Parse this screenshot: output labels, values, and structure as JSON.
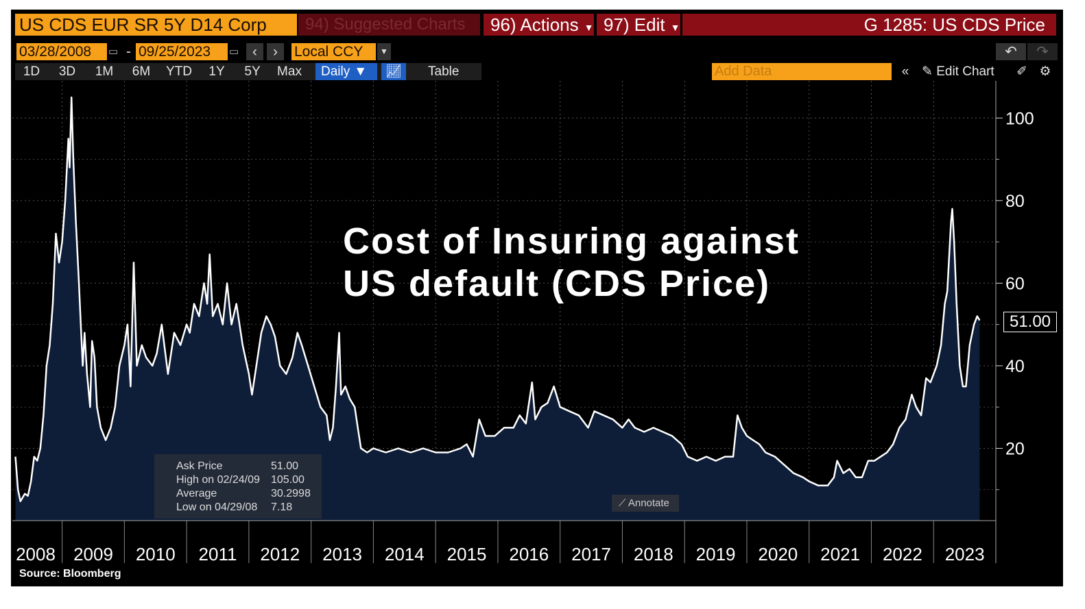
{
  "toolbar": {
    "security": "US CDS EUR SR 5Y D14 Corp",
    "suggested": "94) Suggested Charts",
    "actions": "96) Actions",
    "edit": "97) Edit",
    "function": "G 1285: US CDS Price"
  },
  "date_range": {
    "start": "03/28/2008",
    "separator": "-",
    "end": "09/25/2023",
    "currency": "Local CCY"
  },
  "periods": [
    "1D",
    "3D",
    "1M",
    "6M",
    "YTD",
    "1Y",
    "5Y",
    "Max"
  ],
  "frequency": "Daily",
  "table_button": "Table",
  "add_data": "Add Data",
  "edit_chart": "Edit Chart",
  "annotate": "Annotate",
  "legend": {
    "rows": [
      [
        "Ask Price",
        "51.00"
      ],
      [
        "High on 02/24/09",
        "105.00"
      ],
      [
        "Average",
        "30.2998"
      ],
      [
        "Low on 04/29/08",
        "7.18"
      ]
    ]
  },
  "chart_data": {
    "type": "area",
    "title": [
      "Cost of Insuring against",
      "US default (CDS Price)"
    ],
    "source": "Source: Bloomberg",
    "line_color": "#ffffff",
    "fill_color": "#0e1d38",
    "grid": true,
    "x": [
      2008.25,
      2008.29,
      2008.33,
      2008.4,
      2008.45,
      2008.5,
      2008.55,
      2008.6,
      2008.65,
      2008.7,
      2008.75,
      2008.8,
      2008.85,
      2008.9,
      2008.95,
      2009.0,
      2009.05,
      2009.1,
      2009.12,
      2009.15,
      2009.18,
      2009.22,
      2009.27,
      2009.3,
      2009.33,
      2009.36,
      2009.4,
      2009.45,
      2009.48,
      2009.52,
      2009.56,
      2009.62,
      2009.7,
      2009.78,
      2009.85,
      2009.92,
      2010.0,
      2010.05,
      2010.1,
      2010.15,
      2010.2,
      2010.28,
      2010.35,
      2010.45,
      2010.52,
      2010.6,
      2010.7,
      2010.8,
      2010.9,
      2011.0,
      2011.05,
      2011.12,
      2011.2,
      2011.28,
      2011.33,
      2011.37,
      2011.42,
      2011.5,
      2011.58,
      2011.65,
      2011.72,
      2011.8,
      2011.9,
      2012.0,
      2012.05,
      2012.12,
      2012.2,
      2012.28,
      2012.35,
      2012.42,
      2012.5,
      2012.6,
      2012.7,
      2012.78,
      2012.85,
      2012.95,
      2013.05,
      2013.15,
      2013.25,
      2013.3,
      2013.35,
      2013.4,
      2013.45,
      2013.48,
      2013.55,
      2013.62,
      2013.7,
      2013.75,
      2013.8,
      2013.9,
      2014.0,
      2014.2,
      2014.4,
      2014.6,
      2014.8,
      2015.0,
      2015.2,
      2015.4,
      2015.5,
      2015.6,
      2015.7,
      2015.8,
      2015.95,
      2016.1,
      2016.25,
      2016.35,
      2016.45,
      2016.55,
      2016.6,
      2016.7,
      2016.8,
      2016.9,
      2017.0,
      2017.15,
      2017.3,
      2017.45,
      2017.55,
      2017.7,
      2017.85,
      2018.0,
      2018.1,
      2018.2,
      2018.35,
      2018.5,
      2018.65,
      2018.8,
      2018.95,
      2019.05,
      2019.2,
      2019.35,
      2019.5,
      2019.65,
      2019.78,
      2019.85,
      2019.92,
      2020.0,
      2020.1,
      2020.2,
      2020.3,
      2020.45,
      2020.6,
      2020.75,
      2020.9,
      2021.0,
      2021.15,
      2021.3,
      2021.4,
      2021.45,
      2021.55,
      2021.65,
      2021.75,
      2021.85,
      2021.95,
      2022.05,
      2022.15,
      2022.25,
      2022.35,
      2022.45,
      2022.55,
      2022.6,
      2022.65,
      2022.72,
      2022.8,
      2022.88,
      2022.95,
      2023.05,
      2023.12,
      2023.18,
      2023.22,
      2023.28,
      2023.3,
      2023.33,
      2023.37,
      2023.42,
      2023.47,
      2023.52,
      2023.58,
      2023.65,
      2023.7,
      2023.74
    ],
    "values": [
      18,
      10,
      7.18,
      9,
      8.5,
      12,
      18,
      17,
      20,
      28,
      40,
      45,
      55,
      72,
      65,
      70,
      80,
      95,
      88,
      105,
      90,
      75,
      60,
      50,
      40,
      48,
      38,
      30,
      46,
      42,
      30,
      25,
      22,
      25,
      30,
      40,
      45,
      50,
      35,
      65,
      40,
      45,
      42,
      40,
      43,
      50,
      38,
      48,
      45,
      50,
      48,
      55,
      52,
      60,
      55,
      67,
      52,
      55,
      50,
      60,
      50,
      55,
      45,
      38,
      33,
      40,
      48,
      52,
      50,
      47,
      40,
      38,
      42,
      48,
      45,
      40,
      35,
      30,
      28,
      22,
      25,
      35,
      48,
      33,
      35,
      32,
      30,
      25,
      20,
      19,
      20,
      19,
      20,
      19,
      20,
      19,
      19,
      20,
      21,
      18,
      27,
      23,
      23,
      25,
      25,
      28,
      26,
      36,
      27,
      30,
      31,
      35,
      30,
      29,
      28,
      25,
      29,
      28,
      27,
      25,
      27,
      25,
      24,
      25,
      24,
      23,
      21,
      18,
      17,
      18,
      17,
      18,
      18,
      28,
      25,
      23,
      22,
      21,
      19,
      18,
      16,
      14,
      13,
      12,
      11,
      11,
      13,
      17,
      14,
      15,
      13,
      13,
      17,
      17,
      18,
      19,
      21,
      25,
      27,
      30,
      33,
      30,
      28,
      37,
      36,
      40,
      45,
      55,
      58,
      75,
      78,
      70,
      55,
      40,
      35,
      35,
      45,
      50,
      52,
      51
    ],
    "last_value_label": "51.00",
    "xlim": [
      2008.2,
      2024.0
    ],
    "xticks": [
      {
        "value": 2008.5,
        "label": "2008"
      },
      {
        "value": 2009.5,
        "label": "2009"
      },
      {
        "value": 2010.5,
        "label": "2010"
      },
      {
        "value": 2011.5,
        "label": "2011"
      },
      {
        "value": 2012.5,
        "label": "2012"
      },
      {
        "value": 2013.5,
        "label": "2013"
      },
      {
        "value": 2014.5,
        "label": "2014"
      },
      {
        "value": 2015.5,
        "label": "2015"
      },
      {
        "value": 2016.5,
        "label": "2016"
      },
      {
        "value": 2017.5,
        "label": "2017"
      },
      {
        "value": 2018.5,
        "label": "2018"
      },
      {
        "value": 2019.5,
        "label": "2019"
      },
      {
        "value": 2020.5,
        "label": "2020"
      },
      {
        "value": 2021.5,
        "label": "2021"
      },
      {
        "value": 2022.5,
        "label": "2022"
      },
      {
        "value": 2023.5,
        "label": "2023"
      }
    ],
    "ylim": [
      2.5,
      109
    ],
    "yticks": [
      20,
      40,
      60,
      80,
      100
    ],
    "minor_yticks": [
      10,
      30,
      50,
      70,
      90
    ]
  }
}
